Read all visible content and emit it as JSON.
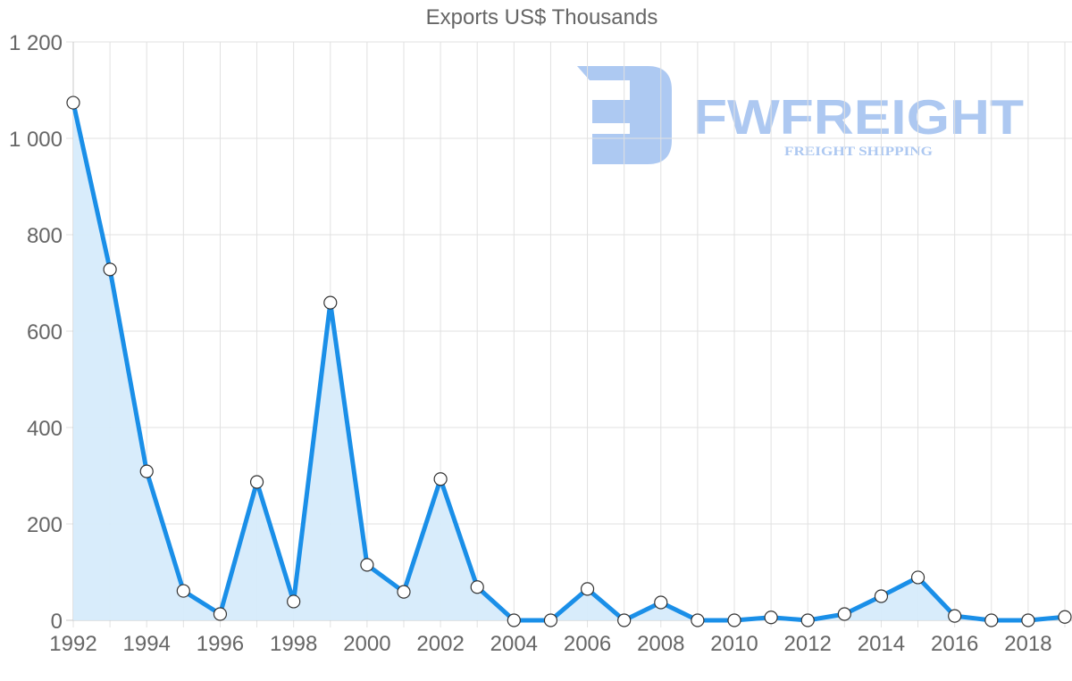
{
  "chart_data": {
    "type": "area",
    "title": "Exports US$ Thousands",
    "xlabel": "",
    "ylabel": "",
    "x": [
      1992,
      1993,
      1994,
      1995,
      1996,
      1997,
      1998,
      1999,
      2000,
      2001,
      2002,
      2003,
      2004,
      2005,
      2006,
      2007,
      2008,
      2009,
      2010,
      2011,
      2012,
      2013,
      2014,
      2015,
      2016,
      2017,
      2018,
      2019
    ],
    "series": [
      {
        "name": "Exports US$ Thousands",
        "values": [
          1074,
          728,
          309,
          61,
          13,
          287,
          39,
          659,
          115,
          59,
          293,
          69,
          0,
          0,
          65,
          0,
          37,
          0,
          0,
          6,
          0,
          13,
          50,
          89,
          9,
          0,
          0,
          7
        ]
      }
    ],
    "ylim": [
      0,
      1200
    ],
    "y_ticks": [
      0,
      200,
      400,
      600,
      800,
      1000,
      1200
    ],
    "y_tick_labels": [
      "0",
      "200",
      "400",
      "600",
      "800",
      "1 000",
      "1 200"
    ],
    "x_tick_labels": [
      "1992",
      "1994",
      "1996",
      "1998",
      "2000",
      "2002",
      "2004",
      "2006",
      "2008",
      "2010",
      "2012",
      "2014",
      "2016",
      "2018"
    ],
    "grid": true,
    "legend": "none",
    "colors": {
      "line": "#1a8fe8",
      "fill": "#d6ebfb",
      "point_fill": "#ffffff",
      "point_stroke": "#333333",
      "grid": "#e1e1e1",
      "text": "#666666"
    }
  },
  "watermark": {
    "brand": "FWFREIGHT",
    "tagline": "FREIGHT SHIPPING",
    "color": "#a9c6f1"
  }
}
